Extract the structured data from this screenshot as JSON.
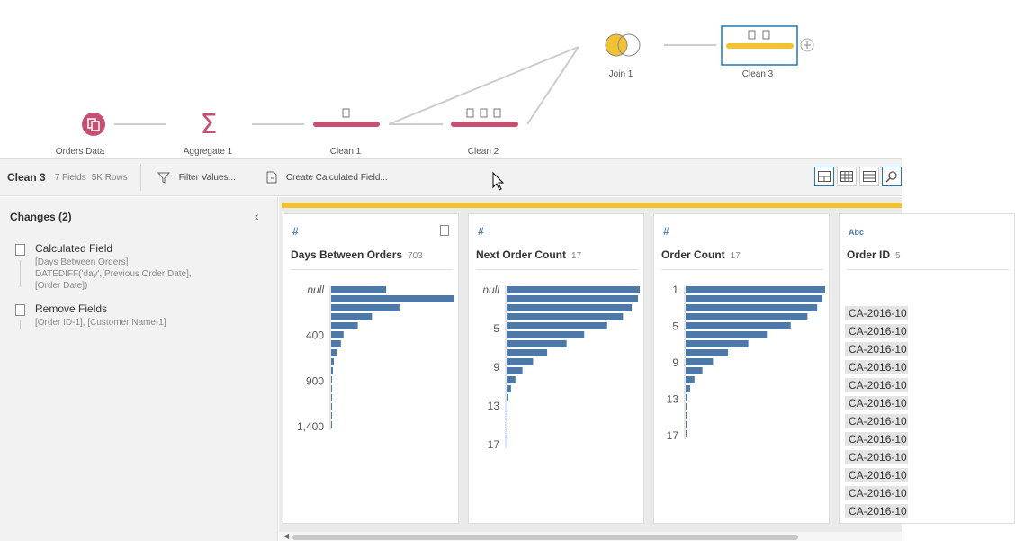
{
  "flow": {
    "nodes": [
      {
        "label": "Orders Data"
      },
      {
        "label": "Aggregate 1"
      },
      {
        "label": "Clean 1"
      },
      {
        "label": "Clean 2"
      },
      {
        "label": "Join 1"
      },
      {
        "label": "Clean 3"
      }
    ],
    "colors": {
      "input": "#c65071",
      "clean_step": "#c65071",
      "selected_clean": "#f1c232",
      "join_left": "#f1c232",
      "accent_blue": "#1f77b4"
    }
  },
  "toolbar": {
    "title": "Clean 3",
    "fields": "7 Fields",
    "rows": "5K Rows",
    "filter_label": "Filter Values...",
    "calc_label": "Create Calculated Field..."
  },
  "changes": {
    "title": "Changes (2)",
    "items": [
      {
        "name": "Calculated Field",
        "details": [
          "[Days Between Orders]",
          "DATEDIFF('day',[Previous Order Date],",
          "[Order Date])"
        ]
      },
      {
        "name": "Remove Fields",
        "details": [
          "[Order ID-1], [Customer Name-1]"
        ]
      }
    ]
  },
  "profile": {
    "cards": [
      {
        "type": "#",
        "name": "Days Between Orders",
        "count": "703",
        "labels": [
          "null",
          "400",
          "900",
          "1,400"
        ],
        "bars": [
          62,
          139,
          77,
          46,
          30,
          14,
          11,
          6,
          3,
          2,
          1,
          1,
          1,
          1,
          1,
          1
        ]
      },
      {
        "type": "#",
        "name": "Next Order Count",
        "count": "17",
        "labels": [
          "null",
          "5",
          "9",
          "13",
          "17"
        ],
        "bars": [
          151,
          149,
          142,
          132,
          114,
          88,
          68,
          46,
          30,
          18,
          10,
          5,
          2,
          1,
          1,
          1,
          1,
          1
        ]
      },
      {
        "type": "#",
        "name": "Order Count",
        "count": "17",
        "labels": [
          "1",
          "5",
          "9",
          "13",
          "17"
        ],
        "bars": [
          158,
          155,
          149,
          138,
          119,
          92,
          71,
          48,
          31,
          19,
          10,
          5,
          2,
          1,
          1,
          1,
          1
        ]
      },
      {
        "type": "Abc",
        "name": "Order ID",
        "count": "5",
        "values": [
          "CA-2016-10",
          "CA-2016-10",
          "CA-2016-10",
          "CA-2016-10",
          "CA-2016-10",
          "CA-2016-10",
          "CA-2016-10",
          "CA-2016-10",
          "CA-2016-10",
          "CA-2016-10",
          "CA-2016-10",
          "CA-2016-10"
        ]
      }
    ],
    "bar_color": "#4e79a7"
  }
}
